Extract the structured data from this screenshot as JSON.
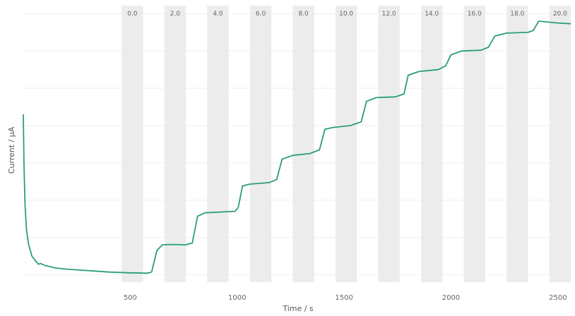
{
  "chart_data": {
    "type": "line",
    "xlabel": "Time / s",
    "ylabel": "Current / µA",
    "xlim": [
      0,
      2560
    ],
    "ylim": [
      0,
      7
    ],
    "x_ticks": [
      500,
      1000,
      1500,
      2000,
      2500
    ],
    "y_gridlines": [
      0.2,
      1.2,
      2.2,
      3.2,
      4.2,
      5.2,
      6.2,
      7.2
    ],
    "y_tick_labels_shown": false,
    "grid": true,
    "colors": {
      "line": "#2a9d7e",
      "band": "#ececec",
      "grid": "#eeeeee"
    },
    "injection_bands": [
      {
        "label": "0.0",
        "start": 460,
        "end": 560
      },
      {
        "label": "2.0",
        "start": 660,
        "end": 760
      },
      {
        "label": "4.0",
        "start": 860,
        "end": 960
      },
      {
        "label": "6.0",
        "start": 1060,
        "end": 1160
      },
      {
        "label": "8.0",
        "start": 1260,
        "end": 1360
      },
      {
        "label": "10.0",
        "start": 1460,
        "end": 1560
      },
      {
        "label": "12.0",
        "start": 1660,
        "end": 1760
      },
      {
        "label": "14.0",
        "start": 1860,
        "end": 1960
      },
      {
        "label": "16.0",
        "start": 2060,
        "end": 2160
      },
      {
        "label": "18.0",
        "start": 2260,
        "end": 2360
      },
      {
        "label": "20.0",
        "start": 2460,
        "end": 2560
      }
    ],
    "series": [
      {
        "points": [
          [
            0,
            4.5
          ],
          [
            3,
            3.2
          ],
          [
            8,
            2.1
          ],
          [
            15,
            1.4
          ],
          [
            25,
            1.0
          ],
          [
            40,
            0.7
          ],
          [
            60,
            0.55
          ],
          [
            70,
            0.48
          ],
          [
            80,
            0.5
          ],
          [
            100,
            0.45
          ],
          [
            150,
            0.38
          ],
          [
            200,
            0.35
          ],
          [
            300,
            0.31
          ],
          [
            400,
            0.27
          ],
          [
            500,
            0.25
          ],
          [
            580,
            0.24
          ],
          [
            600,
            0.27
          ],
          [
            625,
            0.85
          ],
          [
            650,
            1.0
          ],
          [
            700,
            1.01
          ],
          [
            760,
            1.0
          ],
          [
            790,
            1.05
          ],
          [
            815,
            1.77
          ],
          [
            850,
            1.86
          ],
          [
            920,
            1.88
          ],
          [
            990,
            1.9
          ],
          [
            1005,
            2.0
          ],
          [
            1025,
            2.58
          ],
          [
            1060,
            2.63
          ],
          [
            1150,
            2.67
          ],
          [
            1185,
            2.75
          ],
          [
            1210,
            3.3
          ],
          [
            1260,
            3.4
          ],
          [
            1340,
            3.45
          ],
          [
            1385,
            3.55
          ],
          [
            1410,
            4.1
          ],
          [
            1450,
            4.15
          ],
          [
            1530,
            4.2
          ],
          [
            1580,
            4.3
          ],
          [
            1605,
            4.85
          ],
          [
            1650,
            4.95
          ],
          [
            1740,
            4.97
          ],
          [
            1780,
            5.05
          ],
          [
            1800,
            5.55
          ],
          [
            1850,
            5.65
          ],
          [
            1940,
            5.7
          ],
          [
            1975,
            5.8
          ],
          [
            2000,
            6.1
          ],
          [
            2050,
            6.2
          ],
          [
            2140,
            6.22
          ],
          [
            2175,
            6.3
          ],
          [
            2205,
            6.6
          ],
          [
            2260,
            6.68
          ],
          [
            2360,
            6.7
          ],
          [
            2385,
            6.75
          ],
          [
            2410,
            7.0
          ],
          [
            2450,
            6.98
          ],
          [
            2500,
            6.95
          ],
          [
            2560,
            6.93
          ]
        ]
      }
    ]
  }
}
